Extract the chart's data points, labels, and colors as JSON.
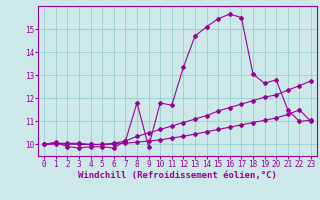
{
  "xlabel": "Windchill (Refroidissement éolien,°C)",
  "background_color": "#cce8e8",
  "line_color": "#990099",
  "grid_color": "#99cccc",
  "xlim": [
    -0.5,
    23.5
  ],
  "ylim": [
    9.5,
    16.0
  ],
  "xticks": [
    0,
    1,
    2,
    3,
    4,
    5,
    6,
    7,
    8,
    9,
    10,
    11,
    12,
    13,
    14,
    15,
    16,
    17,
    18,
    19,
    20,
    21,
    22,
    23
  ],
  "yticks": [
    10,
    11,
    12,
    13,
    14,
    15
  ],
  "line1_x": [
    0,
    1,
    2,
    3,
    4,
    5,
    6,
    7,
    8,
    9,
    10,
    11,
    12,
    13,
    14,
    15,
    16,
    17,
    18,
    19,
    20,
    21,
    22,
    23
  ],
  "line1_y": [
    10.0,
    10.1,
    9.9,
    9.85,
    9.9,
    9.9,
    9.85,
    10.15,
    11.8,
    9.9,
    11.8,
    11.7,
    13.35,
    14.7,
    15.1,
    15.45,
    15.65,
    15.5,
    13.05,
    12.65,
    12.8,
    11.5,
    11.0,
    11.05
  ],
  "line2_x": [
    0,
    1,
    2,
    3,
    4,
    5,
    6,
    7,
    8,
    9,
    10,
    11,
    12,
    13,
    14,
    15,
    16,
    17,
    18,
    19,
    20,
    21,
    22,
    23
  ],
  "line2_y": [
    10.0,
    10.05,
    10.05,
    10.05,
    10.0,
    10.0,
    10.05,
    10.15,
    10.35,
    10.5,
    10.65,
    10.8,
    10.95,
    11.1,
    11.25,
    11.45,
    11.6,
    11.75,
    11.9,
    12.05,
    12.15,
    12.35,
    12.55,
    12.75
  ],
  "line3_x": [
    0,
    1,
    2,
    3,
    4,
    5,
    6,
    7,
    8,
    9,
    10,
    11,
    12,
    13,
    14,
    15,
    16,
    17,
    18,
    19,
    20,
    21,
    22,
    23
  ],
  "line3_y": [
    10.0,
    10.02,
    10.02,
    10.0,
    10.0,
    10.0,
    10.02,
    10.05,
    10.1,
    10.15,
    10.2,
    10.28,
    10.35,
    10.45,
    10.55,
    10.65,
    10.75,
    10.85,
    10.95,
    11.05,
    11.15,
    11.3,
    11.5,
    11.0
  ],
  "tick_fontsize": 5.5,
  "label_fontsize": 6.5,
  "markersize": 2.0
}
